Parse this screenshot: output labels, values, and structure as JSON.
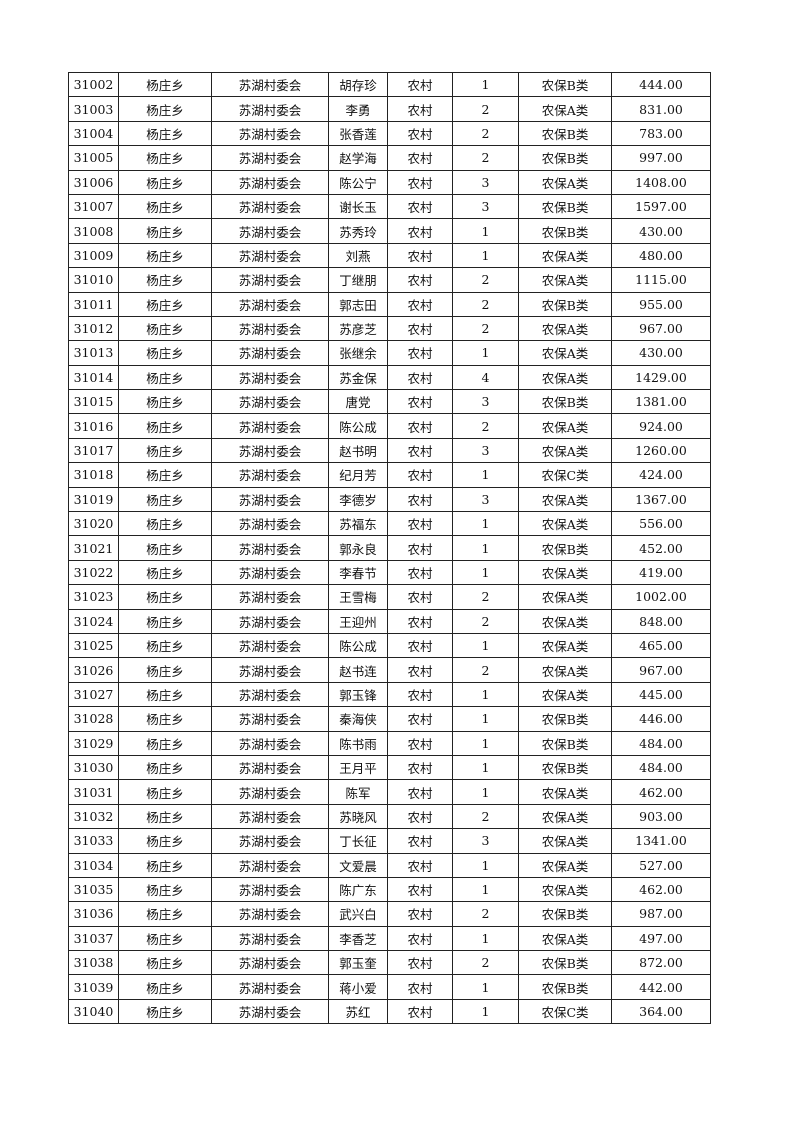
{
  "rows": [
    [
      "31002",
      "杨庄乡",
      "苏湖村委会",
      "胡存珍",
      "农村",
      "1",
      "农保B类",
      "444.00"
    ],
    [
      "31003",
      "杨庄乡",
      "苏湖村委会",
      "李勇",
      "农村",
      "2",
      "农保A类",
      "831.00"
    ],
    [
      "31004",
      "杨庄乡",
      "苏湖村委会",
      "张香莲",
      "农村",
      "2",
      "农保B类",
      "783.00"
    ],
    [
      "31005",
      "杨庄乡",
      "苏湖村委会",
      "赵学海",
      "农村",
      "2",
      "农保B类",
      "997.00"
    ],
    [
      "31006",
      "杨庄乡",
      "苏湖村委会",
      "陈公宁",
      "农村",
      "3",
      "农保A类",
      "1408.00"
    ],
    [
      "31007",
      "杨庄乡",
      "苏湖村委会",
      "谢长玉",
      "农村",
      "3",
      "农保B类",
      "1597.00"
    ],
    [
      "31008",
      "杨庄乡",
      "苏湖村委会",
      "苏秀玲",
      "农村",
      "1",
      "农保B类",
      "430.00"
    ],
    [
      "31009",
      "杨庄乡",
      "苏湖村委会",
      "刘燕",
      "农村",
      "1",
      "农保A类",
      "480.00"
    ],
    [
      "31010",
      "杨庄乡",
      "苏湖村委会",
      "丁继朋",
      "农村",
      "2",
      "农保A类",
      "1115.00"
    ],
    [
      "31011",
      "杨庄乡",
      "苏湖村委会",
      "郭志田",
      "农村",
      "2",
      "农保B类",
      "955.00"
    ],
    [
      "31012",
      "杨庄乡",
      "苏湖村委会",
      "苏彦芝",
      "农村",
      "2",
      "农保A类",
      "967.00"
    ],
    [
      "31013",
      "杨庄乡",
      "苏湖村委会",
      "张继余",
      "农村",
      "1",
      "农保A类",
      "430.00"
    ],
    [
      "31014",
      "杨庄乡",
      "苏湖村委会",
      "苏金保",
      "农村",
      "4",
      "农保A类",
      "1429.00"
    ],
    [
      "31015",
      "杨庄乡",
      "苏湖村委会",
      "唐党",
      "农村",
      "3",
      "农保B类",
      "1381.00"
    ],
    [
      "31016",
      "杨庄乡",
      "苏湖村委会",
      "陈公成",
      "农村",
      "2",
      "农保A类",
      "924.00"
    ],
    [
      "31017",
      "杨庄乡",
      "苏湖村委会",
      "赵书明",
      "农村",
      "3",
      "农保A类",
      "1260.00"
    ],
    [
      "31018",
      "杨庄乡",
      "苏湖村委会",
      "纪月芳",
      "农村",
      "1",
      "农保C类",
      "424.00"
    ],
    [
      "31019",
      "杨庄乡",
      "苏湖村委会",
      "李德岁",
      "农村",
      "3",
      "农保A类",
      "1367.00"
    ],
    [
      "31020",
      "杨庄乡",
      "苏湖村委会",
      "苏福东",
      "农村",
      "1",
      "农保A类",
      "556.00"
    ],
    [
      "31021",
      "杨庄乡",
      "苏湖村委会",
      "郭永良",
      "农村",
      "1",
      "农保B类",
      "452.00"
    ],
    [
      "31022",
      "杨庄乡",
      "苏湖村委会",
      "李春节",
      "农村",
      "1",
      "农保A类",
      "419.00"
    ],
    [
      "31023",
      "杨庄乡",
      "苏湖村委会",
      "王雪梅",
      "农村",
      "2",
      "农保A类",
      "1002.00"
    ],
    [
      "31024",
      "杨庄乡",
      "苏湖村委会",
      "王迎州",
      "农村",
      "2",
      "农保A类",
      "848.00"
    ],
    [
      "31025",
      "杨庄乡",
      "苏湖村委会",
      "陈公成",
      "农村",
      "1",
      "农保A类",
      "465.00"
    ],
    [
      "31026",
      "杨庄乡",
      "苏湖村委会",
      "赵书连",
      "农村",
      "2",
      "农保A类",
      "967.00"
    ],
    [
      "31027",
      "杨庄乡",
      "苏湖村委会",
      "郭玉锋",
      "农村",
      "1",
      "农保A类",
      "445.00"
    ],
    [
      "31028",
      "杨庄乡",
      "苏湖村委会",
      "秦海侠",
      "农村",
      "1",
      "农保B类",
      "446.00"
    ],
    [
      "31029",
      "杨庄乡",
      "苏湖村委会",
      "陈书雨",
      "农村",
      "1",
      "农保B类",
      "484.00"
    ],
    [
      "31030",
      "杨庄乡",
      "苏湖村委会",
      "王月平",
      "农村",
      "1",
      "农保B类",
      "484.00"
    ],
    [
      "31031",
      "杨庄乡",
      "苏湖村委会",
      "陈军",
      "农村",
      "1",
      "农保A类",
      "462.00"
    ],
    [
      "31032",
      "杨庄乡",
      "苏湖村委会",
      "苏晓风",
      "农村",
      "2",
      "农保A类",
      "903.00"
    ],
    [
      "31033",
      "杨庄乡",
      "苏湖村委会",
      "丁长征",
      "农村",
      "3",
      "农保A类",
      "1341.00"
    ],
    [
      "31034",
      "杨庄乡",
      "苏湖村委会",
      "文爱晨",
      "农村",
      "1",
      "农保A类",
      "527.00"
    ],
    [
      "31035",
      "杨庄乡",
      "苏湖村委会",
      "陈广东",
      "农村",
      "1",
      "农保A类",
      "462.00"
    ],
    [
      "31036",
      "杨庄乡",
      "苏湖村委会",
      "武兴白",
      "农村",
      "2",
      "农保B类",
      "987.00"
    ],
    [
      "31037",
      "杨庄乡",
      "苏湖村委会",
      "李香芝",
      "农村",
      "1",
      "农保A类",
      "497.00"
    ],
    [
      "31038",
      "杨庄乡",
      "苏湖村委会",
      "郭玉奎",
      "农村",
      "2",
      "农保B类",
      "872.00"
    ],
    [
      "31039",
      "杨庄乡",
      "苏湖村委会",
      "蒋小爱",
      "农村",
      "1",
      "农保B类",
      "442.00"
    ],
    [
      "31040",
      "杨庄乡",
      "苏湖村委会",
      "苏红",
      "农村",
      "1",
      "农保C类",
      "364.00"
    ]
  ]
}
